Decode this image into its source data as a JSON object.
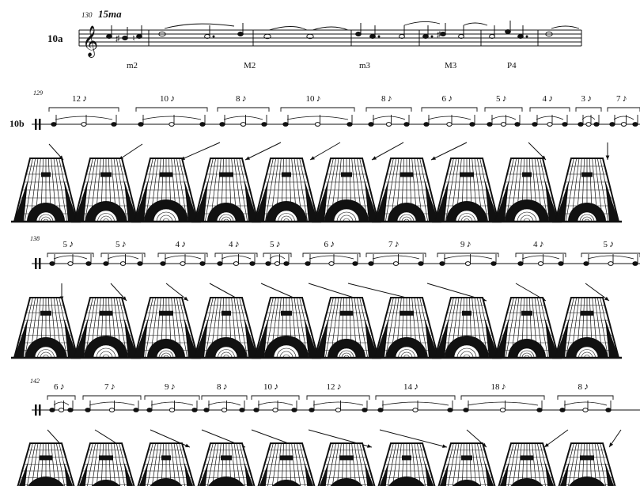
{
  "example_a": {
    "label": "10a",
    "measure": "130",
    "octave_marking": "15ma",
    "intervals": [
      "m2",
      "M2",
      "m3",
      "M3",
      "P4"
    ]
  },
  "systems": [
    {
      "label": "10b",
      "measure": "129",
      "groups": [
        {
          "count": "12",
          "unit": "♪"
        },
        {
          "count": "10",
          "unit": "♪"
        },
        {
          "count": "8",
          "unit": "♪"
        },
        {
          "count": "10",
          "unit": "♪"
        },
        {
          "count": "8",
          "unit": "♪"
        },
        {
          "count": "6",
          "unit": "♪"
        },
        {
          "count": "5",
          "unit": "♪"
        },
        {
          "count": "4",
          "unit": "♪"
        },
        {
          "count": "3",
          "unit": "♪"
        },
        {
          "count": "7",
          "unit": "♪"
        }
      ]
    },
    {
      "label": "",
      "measure": "138",
      "groups": [
        {
          "count": "5",
          "unit": "♪"
        },
        {
          "count": "5",
          "unit": "♪"
        },
        {
          "count": "4",
          "unit": "♪"
        },
        {
          "count": "4",
          "unit": "♪"
        },
        {
          "count": "5",
          "unit": "♪"
        },
        {
          "count": "6",
          "unit": "♪"
        },
        {
          "count": "7",
          "unit": "♪"
        },
        {
          "count": "9",
          "unit": "♪"
        },
        {
          "count": "4",
          "unit": "♪"
        },
        {
          "count": "5",
          "unit": "♪"
        }
      ]
    },
    {
      "label": "",
      "measure": "142",
      "groups": [
        {
          "count": "6",
          "unit": "♪"
        },
        {
          "count": "7",
          "unit": "♪"
        },
        {
          "count": "9",
          "unit": "♪"
        },
        {
          "count": "8",
          "unit": "♪"
        },
        {
          "count": "10",
          "unit": "♪"
        },
        {
          "count": "12",
          "unit": "♪"
        },
        {
          "count": "14",
          "unit": "♪"
        },
        {
          "count": "18",
          "unit": "♪"
        },
        {
          "count": "8",
          "unit": "♪"
        }
      ]
    }
  ],
  "colors": {
    "ink": "#111111",
    "paper": "#ffffff"
  }
}
